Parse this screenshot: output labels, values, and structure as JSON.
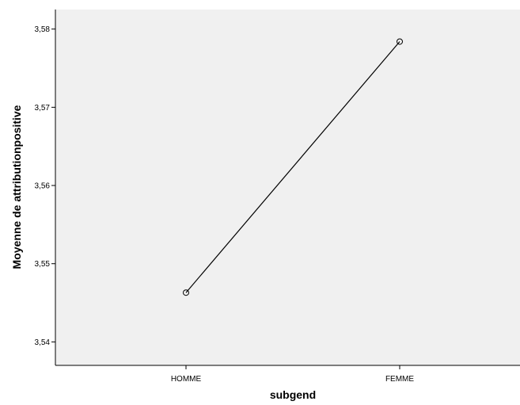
{
  "chart_data": {
    "type": "line",
    "title": "",
    "xlabel": "subgend",
    "ylabel": "Moyenne de attributionpositive",
    "categories": [
      "HOMME",
      "FEMME"
    ],
    "series": [
      {
        "values": [
          3.5463,
          3.5784
        ]
      }
    ],
    "ylim": [
      3.537,
      3.5825
    ],
    "yticks": [
      {
        "value": 3.54,
        "label": "3,54"
      },
      {
        "value": 3.55,
        "label": "3,55"
      },
      {
        "value": 3.56,
        "label": "3,56"
      },
      {
        "value": 3.57,
        "label": "3,57"
      },
      {
        "value": 3.58,
        "label": "3,58"
      }
    ],
    "grid": false,
    "legend": "none",
    "colors": {
      "plot_background": "#f0f0f0",
      "line": "#000000",
      "marker": "#000000"
    }
  }
}
